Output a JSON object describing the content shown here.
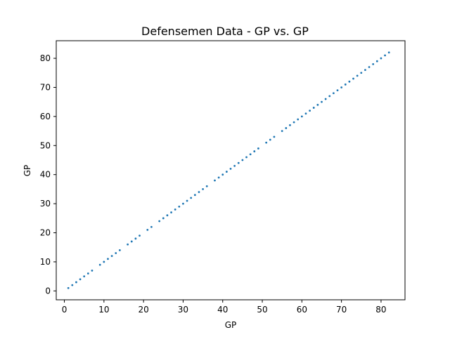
{
  "chart_data": {
    "type": "scatter",
    "title": "Defensemen Data - GP vs. GP",
    "xlabel": "GP",
    "ylabel": "GP",
    "xlim": [
      -2.05,
      86.05
    ],
    "ylim": [
      -3.05,
      86.05
    ],
    "xticks": [
      0,
      10,
      20,
      30,
      40,
      50,
      60,
      70,
      80
    ],
    "yticks": [
      0,
      10,
      20,
      30,
      40,
      50,
      60,
      70,
      80
    ],
    "grid": false,
    "marker_color": "#1f77b4",
    "series": [
      {
        "x": [
          1,
          2,
          3,
          4,
          5,
          6,
          7,
          9,
          10,
          11,
          12,
          13,
          14,
          16,
          17,
          18,
          19,
          21,
          22,
          24,
          25,
          26,
          27,
          28,
          29,
          30,
          31,
          32,
          33,
          34,
          35,
          36,
          38,
          39,
          40,
          41,
          42,
          43,
          44,
          45,
          46,
          47,
          48,
          49,
          51,
          52,
          53,
          55,
          56,
          57,
          58,
          59,
          60,
          61,
          62,
          63,
          64,
          65,
          66,
          67,
          68,
          69,
          70,
          71,
          72,
          73,
          74,
          75,
          76,
          77,
          78,
          79,
          80,
          81,
          82
        ],
        "y": [
          1,
          2,
          3,
          4,
          5,
          6,
          7,
          9,
          10,
          11,
          12,
          13,
          14,
          16,
          17,
          18,
          19,
          21,
          22,
          24,
          25,
          26,
          27,
          28,
          29,
          30,
          31,
          32,
          33,
          34,
          35,
          36,
          38,
          39,
          40,
          41,
          42,
          43,
          44,
          45,
          46,
          47,
          48,
          49,
          51,
          52,
          53,
          55,
          56,
          57,
          58,
          59,
          60,
          61,
          62,
          63,
          64,
          65,
          66,
          67,
          68,
          69,
          70,
          71,
          72,
          73,
          74,
          75,
          76,
          77,
          78,
          79,
          80,
          81,
          82
        ]
      }
    ]
  }
}
